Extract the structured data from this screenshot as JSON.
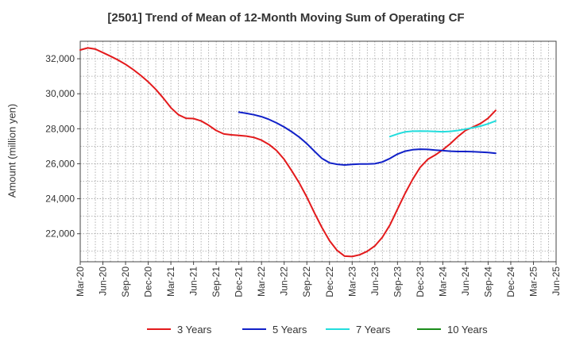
{
  "chart_data": {
    "type": "line",
    "title": "[2501]  Trend of Mean of 12-Month Moving Sum of Operating CF",
    "xlabel": "",
    "ylabel": "Amount (million yen)",
    "ylim": [
      20400,
      33000
    ],
    "yticks": [
      22000,
      24000,
      26000,
      28000,
      30000,
      32000
    ],
    "ytick_labels": [
      "22,000",
      "24,000",
      "26,000",
      "28,000",
      "30,000",
      "32,000"
    ],
    "x_range_months": [
      0,
      63
    ],
    "xticks": [
      "Mar-20",
      "Jun-20",
      "Sep-20",
      "Dec-20",
      "Mar-21",
      "Jun-21",
      "Sep-21",
      "Dec-21",
      "Mar-22",
      "Jun-22",
      "Sep-22",
      "Dec-22",
      "Mar-23",
      "Jun-23",
      "Sep-23",
      "Dec-23",
      "Mar-24",
      "Jun-24",
      "Sep-24",
      "Dec-24",
      "Mar-25",
      "Jun-25"
    ],
    "x_note": "x values are month index, 0 = Mar-20",
    "grid": true,
    "legend_position": "bottom",
    "series": [
      {
        "name": "3 Years",
        "color": "#e31a1c",
        "x": [
          0,
          1,
          2,
          3,
          4,
          5,
          6,
          7,
          8,
          9,
          10,
          11,
          12,
          13,
          14,
          15,
          16,
          17,
          18,
          19,
          20,
          21,
          22,
          23,
          24,
          25,
          26,
          27,
          28,
          29,
          30,
          31,
          32,
          33,
          34,
          35,
          36,
          37,
          38,
          39,
          40,
          41,
          42,
          43,
          44,
          45,
          46,
          47,
          48,
          49,
          50,
          51,
          52,
          53,
          54,
          55,
          56,
          57,
          58,
          59,
          60,
          61,
          62,
          63
        ],
        "values": [
          32500,
          32620,
          32550,
          32350,
          32150,
          31930,
          31680,
          31380,
          31050,
          30680,
          30250,
          29750,
          29200,
          28800,
          28600,
          28580,
          28450,
          28200,
          27900,
          27700,
          27650,
          27620,
          27580,
          27500,
          27350,
          27100,
          26750,
          26250,
          25600,
          24900,
          24100,
          23200,
          22350,
          21600,
          21050,
          20720,
          20700,
          20800,
          21000,
          21300,
          21800,
          22500,
          23400,
          24300,
          25100,
          25800,
          26250,
          26500,
          26800,
          27150,
          27550,
          27900,
          28100,
          28300,
          28600,
          29050,
          null,
          null,
          null,
          null,
          null,
          null,
          null,
          null
        ]
      },
      {
        "name": "5 Years",
        "color": "#1020c8",
        "x": [
          21,
          22,
          23,
          24,
          25,
          26,
          27,
          28,
          29,
          30,
          31,
          32,
          33,
          34,
          35,
          36,
          37,
          38,
          39,
          40,
          41,
          42,
          43,
          44,
          45,
          46,
          47,
          48,
          49,
          50,
          51,
          52,
          53,
          54,
          55
        ],
        "values": [
          28950,
          28880,
          28800,
          28690,
          28530,
          28330,
          28100,
          27830,
          27520,
          27150,
          26720,
          26300,
          26050,
          25970,
          25930,
          25960,
          25990,
          25990,
          26000,
          26100,
          26300,
          26550,
          26720,
          26800,
          26830,
          26820,
          26780,
          26750,
          26720,
          26700,
          26700,
          26690,
          26670,
          26640,
          26600
        ]
      },
      {
        "name": "7 Years",
        "color": "#22dddd",
        "x": [
          41,
          42,
          43,
          44,
          45,
          46,
          47,
          48,
          49,
          50,
          51,
          52,
          53,
          54,
          55
        ],
        "values": [
          27550,
          27700,
          27820,
          27860,
          27870,
          27860,
          27840,
          27830,
          27850,
          27900,
          27980,
          28060,
          28150,
          28280,
          28450
        ]
      },
      {
        "name": "10 Years",
        "color": "#1a8c1a",
        "x": [],
        "values": []
      }
    ]
  }
}
